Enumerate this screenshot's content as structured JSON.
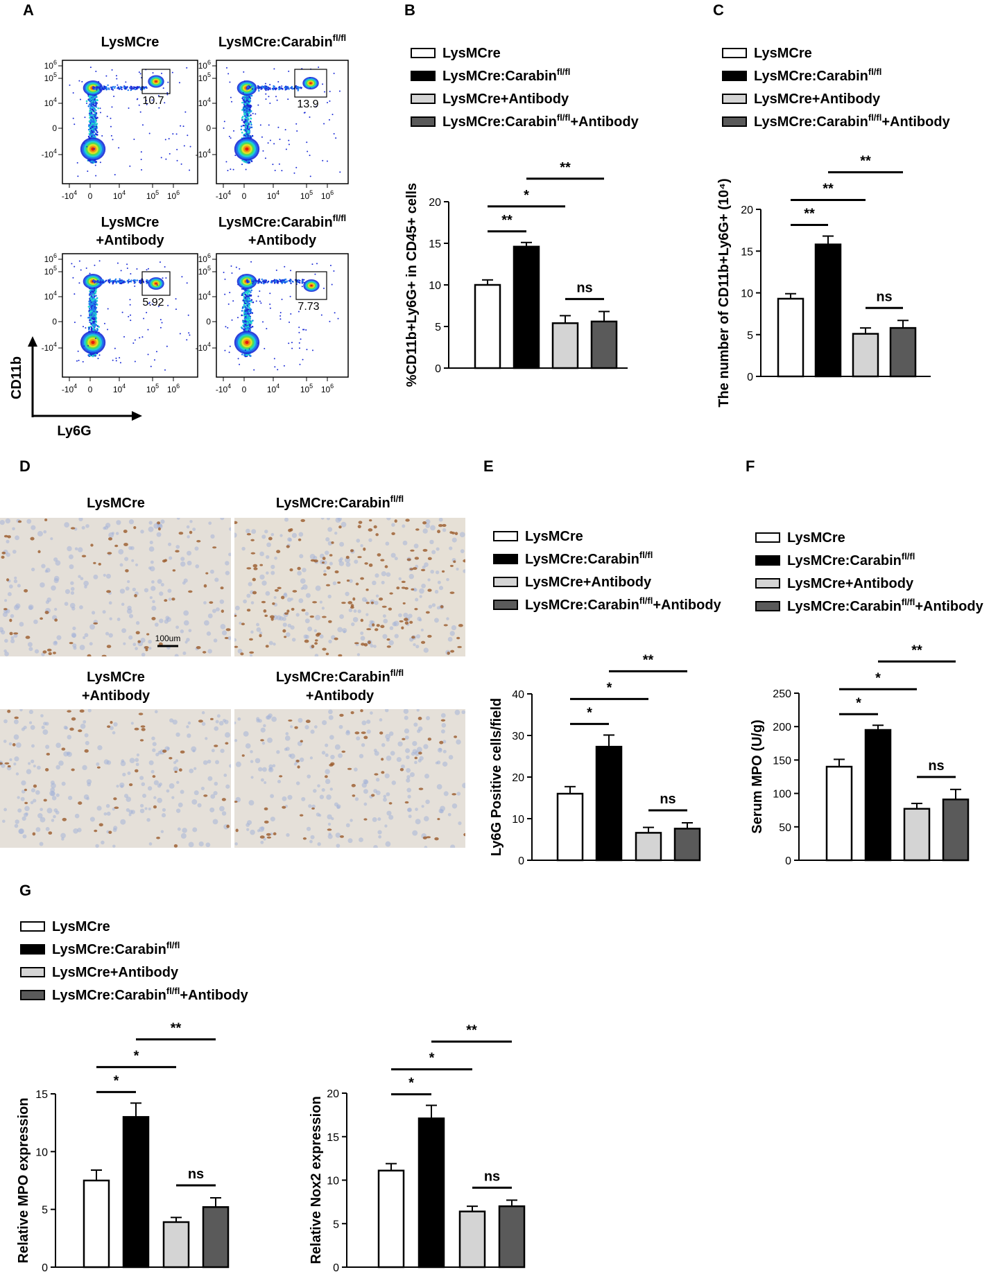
{
  "panel_letters": [
    "A",
    "B",
    "C",
    "D",
    "E",
    "F",
    "G"
  ],
  "groups": [
    "LysMCre",
    "LysMCre:Carabin",
    "LysMCre+Antibody",
    "LysMCre:Carabin",
    "+Antibody"
  ],
  "sup_flfl": "fl/fl",
  "flow": {
    "titles": [
      {
        "l1": "LysMCre",
        "l2": "",
        "sup": ""
      },
      {
        "l1": "LysMCre:Carabin",
        "l2": "",
        "sup": "fl/fl"
      },
      {
        "l1": "LysMCre",
        "l2": "+Antibody",
        "sup": ""
      },
      {
        "l1": "LysMCre:Carabin",
        "l2": "+Antibody",
        "sup": "fl/fl"
      }
    ],
    "gate_values": [
      "10.7",
      "13.9",
      "5.92",
      "7.73"
    ],
    "y_axis_label": "CD11b",
    "x_axis_label": "Ly6G",
    "scale_bar_label": "100um"
  },
  "legend": [
    {
      "text": "LysMCre",
      "sup": "",
      "suffix": "",
      "color": "#ffffff"
    },
    {
      "text": "LysMCre:Carabin",
      "sup": "fl/fl",
      "suffix": "",
      "color": "#000000"
    },
    {
      "text": "LysMCre+Antibody",
      "sup": "",
      "suffix": "",
      "color": "#d4d4d4"
    },
    {
      "text": "LysMCre:Carabin",
      "sup": "fl/fl",
      "suffix": "+Antibody",
      "color": "#5a5a5a"
    }
  ],
  "chart_data": [
    {
      "panel": "B",
      "type": "bar",
      "ylabel": "%CD11b+Ly6G+ in CD45+ cells",
      "ylim": [
        0,
        20
      ],
      "yticks": [
        0,
        5,
        10,
        15,
        20
      ],
      "categories": [
        "LysMCre",
        "LysMCre:Carabin fl/fl",
        "LysMCre+Antibody",
        "LysMCre:Carabin fl/fl+Antibody"
      ],
      "values": [
        10.0,
        14.6,
        5.4,
        5.6
      ],
      "errors": [
        0.6,
        0.5,
        0.9,
        1.2
      ],
      "significance": [
        {
          "pair": [
            0,
            1
          ],
          "label": "**"
        },
        {
          "pair": [
            0,
            2
          ],
          "label": "*"
        },
        {
          "pair": [
            1,
            3
          ],
          "label": "**"
        },
        {
          "pair": [
            2,
            3
          ],
          "label": "ns"
        }
      ]
    },
    {
      "panel": "C",
      "type": "bar",
      "ylabel": "The number of CD11b+Ly6G+ (10⁴)",
      "ylim": [
        0,
        20
      ],
      "yticks": [
        0,
        5,
        10,
        15,
        20
      ],
      "categories": [
        "LysMCre",
        "LysMCre:Carabin fl/fl",
        "LysMCre+Antibody",
        "LysMCre:Carabin fl/fl+Antibody"
      ],
      "values": [
        9.3,
        15.8,
        5.1,
        5.8
      ],
      "errors": [
        0.6,
        1.0,
        0.7,
        0.9
      ],
      "significance": [
        {
          "pair": [
            0,
            1
          ],
          "label": "**"
        },
        {
          "pair": [
            0,
            2
          ],
          "label": "**"
        },
        {
          "pair": [
            1,
            3
          ],
          "label": "**"
        },
        {
          "pair": [
            2,
            3
          ],
          "label": "ns"
        }
      ]
    },
    {
      "panel": "E",
      "type": "bar",
      "ylabel": "Ly6G Positive cells/field",
      "ylim": [
        0,
        40
      ],
      "yticks": [
        0,
        10,
        20,
        30,
        40
      ],
      "categories": [
        "LysMCre",
        "LysMCre:Carabin fl/fl",
        "LysMCre+Antibody",
        "LysMCre:Carabin fl/fl+Antibody"
      ],
      "values": [
        16.0,
        27.3,
        6.6,
        7.6
      ],
      "errors": [
        1.7,
        2.8,
        1.3,
        1.4
      ],
      "significance": [
        {
          "pair": [
            0,
            1
          ],
          "label": "*"
        },
        {
          "pair": [
            0,
            2
          ],
          "label": "*"
        },
        {
          "pair": [
            1,
            3
          ],
          "label": "**"
        },
        {
          "pair": [
            2,
            3
          ],
          "label": "ns"
        }
      ]
    },
    {
      "panel": "F",
      "type": "bar",
      "ylabel": "Serum MPO (U/g)",
      "ylim": [
        0,
        250
      ],
      "yticks": [
        0,
        50,
        100,
        150,
        200,
        250
      ],
      "categories": [
        "LysMCre",
        "LysMCre:Carabin fl/fl",
        "LysMCre+Antibody",
        "LysMCre:Carabin fl/fl+Antibody"
      ],
      "values": [
        140,
        195,
        77,
        91
      ],
      "errors": [
        11,
        7,
        8,
        15
      ],
      "significance": [
        {
          "pair": [
            0,
            1
          ],
          "label": "*"
        },
        {
          "pair": [
            0,
            2
          ],
          "label": "*"
        },
        {
          "pair": [
            1,
            3
          ],
          "label": "**"
        },
        {
          "pair": [
            2,
            3
          ],
          "label": "ns"
        }
      ]
    },
    {
      "panel": "G-left",
      "type": "bar",
      "ylabel": "Relative MPO expression",
      "ylim": [
        0,
        15
      ],
      "yticks": [
        0,
        5,
        10,
        15
      ],
      "categories": [
        "LysMCre",
        "LysMCre:Carabin fl/fl",
        "LysMCre+Antibody",
        "LysMCre:Carabin fl/fl+Antibody"
      ],
      "values": [
        7.5,
        13.0,
        3.9,
        5.2
      ],
      "errors": [
        0.9,
        1.2,
        0.4,
        0.8
      ],
      "significance": [
        {
          "pair": [
            0,
            1
          ],
          "label": "*"
        },
        {
          "pair": [
            0,
            2
          ],
          "label": "*"
        },
        {
          "pair": [
            1,
            3
          ],
          "label": "**"
        },
        {
          "pair": [
            2,
            3
          ],
          "label": "ns"
        }
      ]
    },
    {
      "panel": "G-right",
      "type": "bar",
      "ylabel": "Relative Nox2 expression",
      "ylim": [
        0,
        20
      ],
      "yticks": [
        0,
        5,
        10,
        15,
        20
      ],
      "categories": [
        "LysMCre",
        "LysMCre:Carabin fl/fl",
        "LysMCre+Antibody",
        "LysMCre:Carabin fl/fl+Antibody"
      ],
      "values": [
        11.1,
        17.1,
        6.4,
        7.0
      ],
      "errors": [
        0.8,
        1.5,
        0.6,
        0.7
      ],
      "significance": [
        {
          "pair": [
            0,
            1
          ],
          "label": "*"
        },
        {
          "pair": [
            0,
            2
          ],
          "label": "*"
        },
        {
          "pair": [
            1,
            3
          ],
          "label": "**"
        },
        {
          "pair": [
            2,
            3
          ],
          "label": "ns"
        }
      ]
    }
  ]
}
